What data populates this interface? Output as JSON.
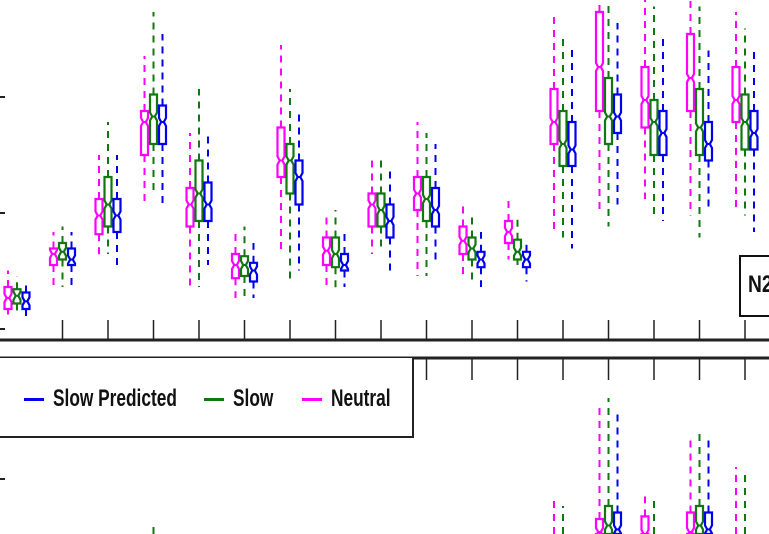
{
  "colors": {
    "neutral": "#ff00ff",
    "slow": "#117711",
    "slow_predicted": "#0000ee",
    "axis": "#222222"
  },
  "panel_label": "N2",
  "legend": [
    {
      "name": "Slow Predicted",
      "color": "#0000ee"
    },
    {
      "name": "Slow",
      "color": "#117711"
    },
    {
      "name": "Neutral",
      "color": "#ff00ff"
    }
  ],
  "chart_data": [
    {
      "type": "box",
      "panel": "top",
      "grid": false,
      "series": [
        {
          "name": "Neutral",
          "color": "#ff00ff",
          "values": [
            {
              "whisker_low": 0.05,
              "q1": 0.1,
              "median": 0.2,
              "q3": 0.3,
              "whisker_high": 0.45
            },
            {
              "whisker_low": 0.3,
              "q1": 0.5,
              "median": 0.6,
              "q3": 0.65,
              "whisker_high": 0.8
            },
            {
              "whisker_low": 0.55,
              "q1": 0.78,
              "median": 0.95,
              "q3": 1.1,
              "whisker_high": 1.5
            },
            {
              "whisker_low": 1.05,
              "q1": 1.5,
              "median": 1.8,
              "q3": 1.9,
              "whisker_high": 2.4
            },
            {
              "whisker_low": 0.3,
              "q1": 0.85,
              "median": 1.05,
              "q3": 1.2,
              "whisker_high": 1.7
            },
            {
              "whisker_low": 0.2,
              "q1": 0.38,
              "median": 0.5,
              "q3": 0.6,
              "whisker_high": 0.8
            },
            {
              "whisker_low": 0.6,
              "q1": 1.3,
              "median": 1.45,
              "q3": 1.75,
              "whisker_high": 2.5
            },
            {
              "whisker_low": 0.3,
              "q1": 0.5,
              "median": 0.63,
              "q3": 0.75,
              "whisker_high": 0.95
            },
            {
              "whisker_low": 0.6,
              "q1": 0.85,
              "median": 1.05,
              "q3": 1.15,
              "whisker_high": 1.5
            },
            {
              "whisker_low": 0.4,
              "q1": 1.0,
              "median": 1.15,
              "q3": 1.3,
              "whisker_high": 1.8
            },
            {
              "whisker_low": 0.4,
              "q1": 0.6,
              "median": 0.72,
              "q3": 0.85,
              "whisker_high": 1.05
            },
            {
              "whisker_low": 0.55,
              "q1": 0.7,
              "median": 0.8,
              "q3": 0.9,
              "whisker_high": 1.1
            },
            {
              "whisker_low": 0.8,
              "q1": 1.6,
              "median": 1.8,
              "q3": 2.1,
              "whisker_high": 2.8
            },
            {
              "whisker_low": 1.0,
              "q1": 1.9,
              "median": 2.3,
              "q3": 2.8,
              "whisker_high": 3.0
            },
            {
              "whisker_low": 1.1,
              "q1": 1.75,
              "median": 2.0,
              "q3": 2.3,
              "whisker_high": 3.0
            },
            {
              "whisker_low": 0.95,
              "q1": 1.9,
              "median": 2.2,
              "q3": 2.6,
              "whisker_high": 3.0
            },
            {
              "whisker_low": 1.0,
              "q1": 1.8,
              "median": 2.0,
              "q3": 2.3,
              "whisker_high": 2.8
            }
          ]
        },
        {
          "name": "Slow",
          "color": "#117711",
          "values": [
            {
              "whisker_low": 0.05,
              "q1": 0.15,
              "median": 0.22,
              "q3": 0.28,
              "whisker_high": 0.4
            },
            {
              "whisker_low": 0.3,
              "q1": 0.55,
              "median": 0.62,
              "q3": 0.7,
              "whisker_high": 0.85
            },
            {
              "whisker_low": 0.6,
              "q1": 0.85,
              "median": 1.05,
              "q3": 1.3,
              "whisker_high": 1.8
            },
            {
              "whisker_low": 1.15,
              "q1": 1.6,
              "median": 1.85,
              "q3": 2.05,
              "whisker_high": 2.8
            },
            {
              "whisker_low": 0.3,
              "q1": 0.9,
              "median": 1.15,
              "q3": 1.45,
              "whisker_high": 2.1
            },
            {
              "whisker_low": 0.2,
              "q1": 0.4,
              "median": 0.5,
              "q3": 0.58,
              "whisker_high": 0.85
            },
            {
              "whisker_low": 0.35,
              "q1": 1.15,
              "median": 1.45,
              "q3": 1.6,
              "whisker_high": 2.1
            },
            {
              "whisker_low": 0.25,
              "q1": 0.48,
              "median": 0.6,
              "q3": 0.75,
              "whisker_high": 1.0
            },
            {
              "whisker_low": 0.65,
              "q1": 0.85,
              "median": 1.0,
              "q3": 1.15,
              "whisker_high": 1.5
            },
            {
              "whisker_low": 0.4,
              "q1": 0.9,
              "median": 1.1,
              "q3": 1.3,
              "whisker_high": 1.7
            },
            {
              "whisker_low": 0.35,
              "q1": 0.55,
              "median": 0.65,
              "q3": 0.75,
              "whisker_high": 0.95
            },
            {
              "whisker_low": 0.5,
              "q1": 0.55,
              "median": 0.62,
              "q3": 0.73,
              "whisker_high": 0.95
            },
            {
              "whisker_low": 0.75,
              "q1": 1.4,
              "median": 1.6,
              "q3": 1.9,
              "whisker_high": 2.6
            },
            {
              "whisker_low": 0.85,
              "q1": 1.6,
              "median": 1.85,
              "q3": 2.2,
              "whisker_high": 2.9
            },
            {
              "whisker_low": 0.95,
              "q1": 1.5,
              "median": 1.8,
              "q3": 2.0,
              "whisker_high": 2.85
            },
            {
              "whisker_low": 0.75,
              "q1": 1.5,
              "median": 1.75,
              "q3": 2.1,
              "whisker_high": 2.85
            },
            {
              "whisker_low": 0.95,
              "q1": 1.55,
              "median": 1.8,
              "q3": 2.05,
              "whisker_high": 2.65
            }
          ]
        },
        {
          "name": "Slow Predicted",
          "color": "#0000ee",
          "values": [
            {
              "whisker_low": 0.02,
              "q1": 0.1,
              "median": 0.17,
              "q3": 0.25,
              "whisker_high": 0.35
            },
            {
              "whisker_low": 0.3,
              "q1": 0.5,
              "median": 0.55,
              "q3": 0.65,
              "whisker_high": 0.8
            },
            {
              "whisker_low": 0.5,
              "q1": 0.8,
              "median": 0.95,
              "q3": 1.1,
              "whisker_high": 1.5
            },
            {
              "whisker_low": 1.05,
              "q1": 1.6,
              "median": 1.8,
              "q3": 1.95,
              "whisker_high": 2.6
            },
            {
              "whisker_low": 0.5,
              "q1": 0.9,
              "median": 1.05,
              "q3": 1.25,
              "whisker_high": 1.7
            },
            {
              "whisker_low": 0.2,
              "q1": 0.35,
              "median": 0.45,
              "q3": 0.52,
              "whisker_high": 0.7
            },
            {
              "whisker_low": 0.45,
              "q1": 1.05,
              "median": 1.3,
              "q3": 1.45,
              "whisker_high": 1.9
            },
            {
              "whisker_low": 0.3,
              "q1": 0.45,
              "median": 0.5,
              "q3": 0.6,
              "whisker_high": 0.8
            },
            {
              "whisker_low": 0.4,
              "q1": 0.75,
              "median": 0.9,
              "q3": 1.05,
              "whisker_high": 1.4
            },
            {
              "whisker_low": 0.55,
              "q1": 0.85,
              "median": 1.0,
              "q3": 1.2,
              "whisker_high": 1.6
            },
            {
              "whisker_low": 0.3,
              "q1": 0.48,
              "median": 0.55,
              "q3": 0.62,
              "whisker_high": 0.8
            },
            {
              "whisker_low": 0.35,
              "q1": 0.48,
              "median": 0.55,
              "q3": 0.62,
              "whisker_high": 0.7
            },
            {
              "whisker_low": 0.65,
              "q1": 1.4,
              "median": 1.55,
              "q3": 1.8,
              "whisker_high": 2.5
            },
            {
              "whisker_low": 1.05,
              "q1": 1.7,
              "median": 1.85,
              "q3": 2.05,
              "whisker_high": 2.7
            },
            {
              "whisker_low": 0.9,
              "q1": 1.5,
              "median": 1.7,
              "q3": 1.9,
              "whisker_high": 2.6
            },
            {
              "whisker_low": 1.0,
              "q1": 1.45,
              "median": 1.6,
              "q3": 1.8,
              "whisker_high": 2.45
            },
            {
              "whisker_low": 0.8,
              "q1": 1.55,
              "median": 1.7,
              "q3": 1.9,
              "whisker_high": 2.45
            }
          ]
        }
      ]
    },
    {
      "type": "box",
      "panel": "bottom",
      "grid": false,
      "series": [
        {
          "name": "Neutral",
          "color": "#ff00ff",
          "values": [
            {
              "whisker_low": null,
              "q1": null,
              "median": null,
              "q3": null,
              "whisker_high": null
            },
            {
              "whisker_low": null,
              "q1": null,
              "median": null,
              "q3": null,
              "whisker_high": null
            },
            {
              "whisker_low": null,
              "q1": null,
              "median": null,
              "q3": null,
              "whisker_high": null
            },
            {
              "whisker_low": null,
              "q1": null,
              "median": null,
              "q3": null,
              "whisker_high": null
            },
            {
              "whisker_low": null,
              "q1": null,
              "median": null,
              "q3": null,
              "whisker_high": null
            },
            {
              "whisker_low": null,
              "q1": null,
              "median": null,
              "q3": null,
              "whisker_high": null
            },
            {
              "whisker_low": null,
              "q1": null,
              "median": null,
              "q3": null,
              "whisker_high": null
            },
            {
              "whisker_low": null,
              "q1": null,
              "median": null,
              "q3": null,
              "whisker_high": null
            },
            {
              "whisker_low": null,
              "q1": null,
              "median": null,
              "q3": null,
              "whisker_high": null
            },
            {
              "whisker_low": null,
              "q1": null,
              "median": null,
              "q3": null,
              "whisker_high": null
            },
            {
              "whisker_low": null,
              "q1": null,
              "median": null,
              "q3": null,
              "whisker_high": null
            },
            {
              "whisker_low": null,
              "q1": null,
              "median": null,
              "q3": null,
              "whisker_high": null
            },
            {
              "whisker_low": 0.0,
              "q1": null,
              "median": null,
              "q3": null,
              "whisker_high": 0.35
            },
            {
              "whisker_low": 0.0,
              "q1": 0.05,
              "median": 0.1,
              "q3": 0.2,
              "whisker_high": 1.1
            },
            {
              "whisker_low": 0.0,
              "q1": 0.0,
              "median": 0.05,
              "q3": 0.22,
              "whisker_high": 0.4
            },
            {
              "whisker_low": 0.0,
              "q1": 0.0,
              "median": 0.1,
              "q3": 0.25,
              "whisker_high": 0.85
            },
            {
              "whisker_low": 0.0,
              "q1": null,
              "median": null,
              "q3": null,
              "whisker_high": 0.6
            }
          ]
        },
        {
          "name": "Slow",
          "color": "#117711",
          "values": [
            {
              "whisker_low": null,
              "q1": null,
              "median": null,
              "q3": null,
              "whisker_high": null
            },
            {
              "whisker_low": null,
              "q1": null,
              "median": null,
              "q3": null,
              "whisker_high": null
            },
            {
              "whisker_low": null,
              "q1": null,
              "median": null,
              "q3": null,
              "whisker_high": null
            },
            {
              "whisker_low": 0.0,
              "q1": null,
              "median": null,
              "q3": null,
              "whisker_high": 0.18
            },
            {
              "whisker_low": null,
              "q1": null,
              "median": null,
              "q3": null,
              "whisker_high": null
            },
            {
              "whisker_low": null,
              "q1": null,
              "median": null,
              "q3": null,
              "whisker_high": null
            },
            {
              "whisker_low": null,
              "q1": null,
              "median": null,
              "q3": null,
              "whisker_high": null
            },
            {
              "whisker_low": null,
              "q1": null,
              "median": null,
              "q3": null,
              "whisker_high": null
            },
            {
              "whisker_low": null,
              "q1": null,
              "median": null,
              "q3": null,
              "whisker_high": null
            },
            {
              "whisker_low": null,
              "q1": null,
              "median": null,
              "q3": null,
              "whisker_high": null
            },
            {
              "whisker_low": null,
              "q1": null,
              "median": null,
              "q3": null,
              "whisker_high": null
            },
            {
              "whisker_low": null,
              "q1": null,
              "median": null,
              "q3": null,
              "whisker_high": null
            },
            {
              "whisker_low": 0.0,
              "q1": null,
              "median": null,
              "q3": null,
              "whisker_high": 0.3
            },
            {
              "whisker_low": 0.0,
              "q1": 0.05,
              "median": 0.15,
              "q3": 0.3,
              "whisker_high": 1.15
            },
            {
              "whisker_low": 0.0,
              "q1": null,
              "median": null,
              "q3": null,
              "whisker_high": 0.35
            },
            {
              "whisker_low": 0.0,
              "q1": 0.05,
              "median": 0.15,
              "q3": 0.3,
              "whisker_high": 0.9
            },
            {
              "whisker_low": 0.0,
              "q1": null,
              "median": null,
              "q3": null,
              "whisker_high": 0.55
            }
          ]
        },
        {
          "name": "Slow Predicted",
          "color": "#0000ee",
          "values": [
            {
              "whisker_low": null,
              "q1": null,
              "median": null,
              "q3": null,
              "whisker_high": null
            },
            {
              "whisker_low": null,
              "q1": null,
              "median": null,
              "q3": null,
              "whisker_high": null
            },
            {
              "whisker_low": null,
              "q1": null,
              "median": null,
              "q3": null,
              "whisker_high": null
            },
            {
              "whisker_low": null,
              "q1": null,
              "median": null,
              "q3": null,
              "whisker_high": null
            },
            {
              "whisker_low": null,
              "q1": null,
              "median": null,
              "q3": null,
              "whisker_high": null
            },
            {
              "whisker_low": null,
              "q1": null,
              "median": null,
              "q3": null,
              "whisker_high": null
            },
            {
              "whisker_low": null,
              "q1": null,
              "median": null,
              "q3": null,
              "whisker_high": null
            },
            {
              "whisker_low": null,
              "q1": null,
              "median": null,
              "q3": null,
              "whisker_high": null
            },
            {
              "whisker_low": null,
              "q1": null,
              "median": null,
              "q3": null,
              "whisker_high": null
            },
            {
              "whisker_low": null,
              "q1": null,
              "median": null,
              "q3": null,
              "whisker_high": null
            },
            {
              "whisker_low": null,
              "q1": null,
              "median": null,
              "q3": null,
              "whisker_high": null
            },
            {
              "whisker_low": null,
              "q1": null,
              "median": null,
              "q3": null,
              "whisker_high": null
            },
            {
              "whisker_low": null,
              "q1": null,
              "median": null,
              "q3": null,
              "whisker_high": null
            },
            {
              "whisker_low": 0.0,
              "q1": 0.05,
              "median": 0.12,
              "q3": 0.25,
              "whisker_high": 1.05
            },
            {
              "whisker_low": null,
              "q1": null,
              "median": null,
              "q3": null,
              "whisker_high": null
            },
            {
              "whisker_low": 0.0,
              "q1": 0.05,
              "median": 0.12,
              "q3": 0.25,
              "whisker_high": 0.85
            },
            {
              "whisker_low": null,
              "q1": null,
              "median": null,
              "q3": null,
              "whisker_high": null
            }
          ]
        }
      ]
    }
  ]
}
